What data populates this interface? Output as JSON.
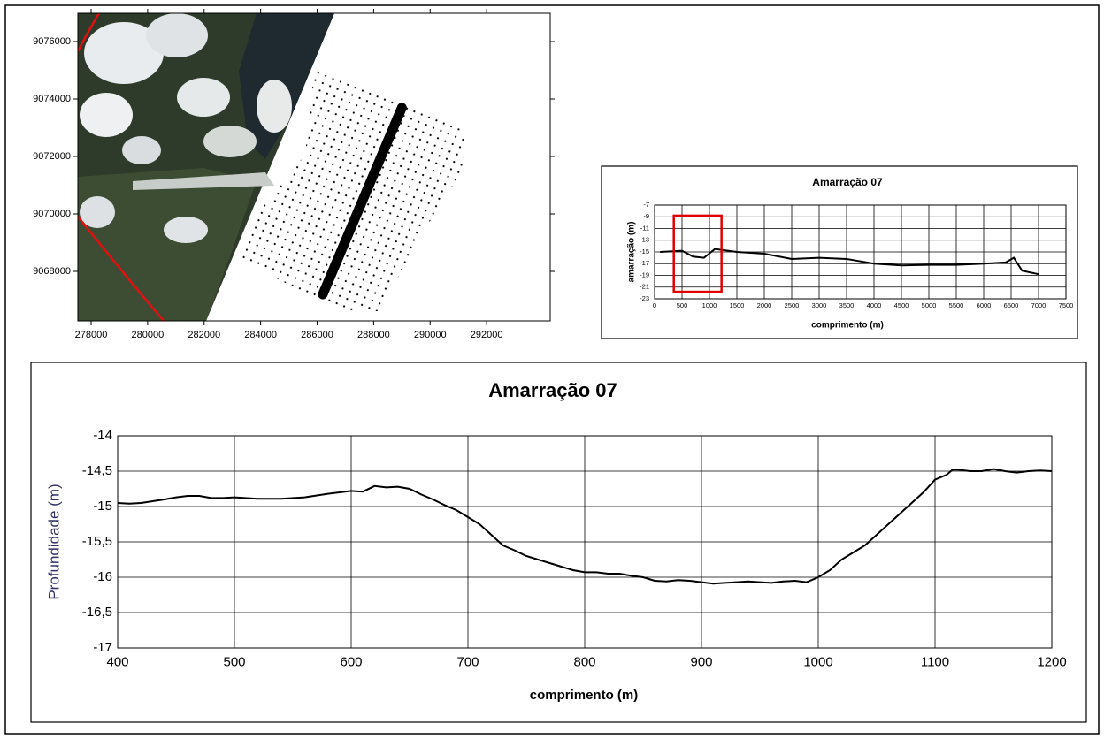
{
  "chart_data": [
    {
      "type": "map",
      "xlim": [
        277530,
        294250
      ],
      "ylim": [
        9066277,
        9076985
      ],
      "xticks": [
        278000,
        280000,
        282000,
        284000,
        286000,
        288000,
        290000,
        292000
      ],
      "yticks": [
        9068000,
        9070000,
        9072000,
        9074000,
        9076000
      ],
      "transect": {
        "x": [
          286200,
          289000
        ],
        "y": [
          9067200,
          9073700
        ],
        "color": "#000000"
      }
    },
    {
      "type": "line",
      "title": "Amarração 07",
      "xlabel": "comprimento (m)",
      "ylabel": "amarração (m)",
      "xlim": [
        0,
        7500
      ],
      "ylim": [
        -23,
        -7
      ],
      "xticks": [
        0,
        500,
        1000,
        1500,
        2000,
        2500,
        3000,
        3500,
        4000,
        4500,
        5000,
        5500,
        6000,
        6500,
        7000,
        7500
      ],
      "yticks": [
        -23,
        -21,
        -19,
        -17,
        -15,
        -13,
        -11,
        -9,
        -7
      ],
      "grid": true,
      "color": "#000000",
      "x": [
        100,
        500,
        700,
        900,
        1100,
        1500,
        2000,
        2500,
        3000,
        3500,
        4000,
        4500,
        5000,
        5500,
        6000,
        6400,
        6550,
        6700,
        7000
      ],
      "values": [
        -15,
        -14.8,
        -15.8,
        -16,
        -14.5,
        -15,
        -15.3,
        -16.2,
        -16,
        -16.2,
        -17,
        -17.3,
        -17.2,
        -17.2,
        -17,
        -16.8,
        -16,
        -18.2,
        -18.8
      ],
      "highlight": {
        "x": [
          350,
          1220
        ],
        "y": [
          -8.8,
          -21.8
        ],
        "color": "#e00000"
      }
    },
    {
      "type": "line",
      "title": "Amarração 07",
      "xlabel": "comprimento (m)",
      "ylabel": "Profundidade (m)",
      "ylabel_color": "#333366",
      "xlim": [
        400,
        1200
      ],
      "ylim": [
        -17,
        -14
      ],
      "xticks": [
        400,
        500,
        600,
        700,
        800,
        900,
        1000,
        1100,
        1200
      ],
      "yticks": [
        {
          "value": -17,
          "label": "-17"
        },
        {
          "value": -16.5,
          "label": "-16,5"
        },
        {
          "value": -16,
          "label": "-16"
        },
        {
          "value": -15.5,
          "label": "-15,5"
        },
        {
          "value": -15,
          "label": "-15"
        },
        {
          "value": -14.5,
          "label": "-14,5"
        },
        {
          "value": -14,
          "label": "-14"
        }
      ],
      "grid": true,
      "color": "#000000",
      "x": [
        400,
        410,
        420,
        440,
        450,
        460,
        470,
        480,
        490,
        500,
        520,
        540,
        560,
        580,
        600,
        610,
        620,
        630,
        640,
        650,
        660,
        670,
        680,
        690,
        700,
        710,
        720,
        730,
        740,
        750,
        760,
        770,
        780,
        790,
        800,
        810,
        820,
        830,
        840,
        850,
        860,
        870,
        880,
        890,
        900,
        910,
        920,
        930,
        940,
        950,
        960,
        970,
        980,
        990,
        1000,
        1010,
        1020,
        1030,
        1040,
        1050,
        1060,
        1070,
        1080,
        1090,
        1100,
        1110,
        1115,
        1120,
        1130,
        1140,
        1150,
        1160,
        1170,
        1180,
        1190,
        1200
      ],
      "values": [
        -14.95,
        -14.96,
        -14.95,
        -14.9,
        -14.87,
        -14.85,
        -14.85,
        -14.88,
        -14.88,
        -14.87,
        -14.89,
        -14.89,
        -14.87,
        -14.82,
        -14.78,
        -14.79,
        -14.71,
        -14.73,
        -14.72,
        -14.75,
        -14.83,
        -14.9,
        -14.98,
        -15.05,
        -15.15,
        -15.25,
        -15.4,
        -15.55,
        -15.62,
        -15.7,
        -15.75,
        -15.8,
        -15.85,
        -15.9,
        -15.93,
        -15.93,
        -15.95,
        -15.95,
        -15.98,
        -16,
        -16.05,
        -16.06,
        -16.04,
        -16.05,
        -16.07,
        -16.09,
        -16.08,
        -16.07,
        -16.06,
        -16.07,
        -16.08,
        -16.06,
        -16.05,
        -16.07,
        -16,
        -15.9,
        -15.75,
        -15.65,
        -15.55,
        -15.4,
        -15.25,
        -15.1,
        -14.95,
        -14.8,
        -14.62,
        -14.55,
        -14.48,
        -14.48,
        -14.5,
        -14.5,
        -14.47,
        -14.5,
        -14.52,
        -14.5,
        -14.49,
        -14.5
      ]
    }
  ]
}
